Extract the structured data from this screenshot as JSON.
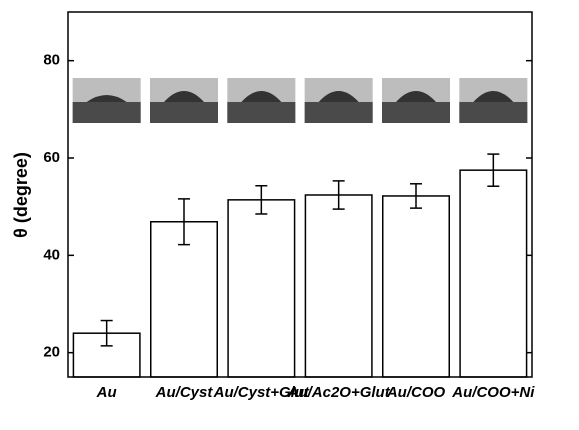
{
  "chart_data": {
    "type": "bar",
    "y_label": "θ (degree)",
    "categories": [
      "Au",
      "Au/Cyst",
      "Au/Cyst+Glut",
      "Au/Ac2O+Glut",
      "Au/COO",
      "Au/COO+Ni"
    ],
    "values": [
      24,
      46.9,
      51.4,
      52.4,
      52.2,
      57.5
    ],
    "errors": [
      2.6,
      4.7,
      2.9,
      2.9,
      2.5,
      3.3
    ],
    "color": "#ffffff",
    "ylim": [
      15,
      90
    ],
    "yticks": [
      20,
      40,
      60,
      80
    ]
  }
}
